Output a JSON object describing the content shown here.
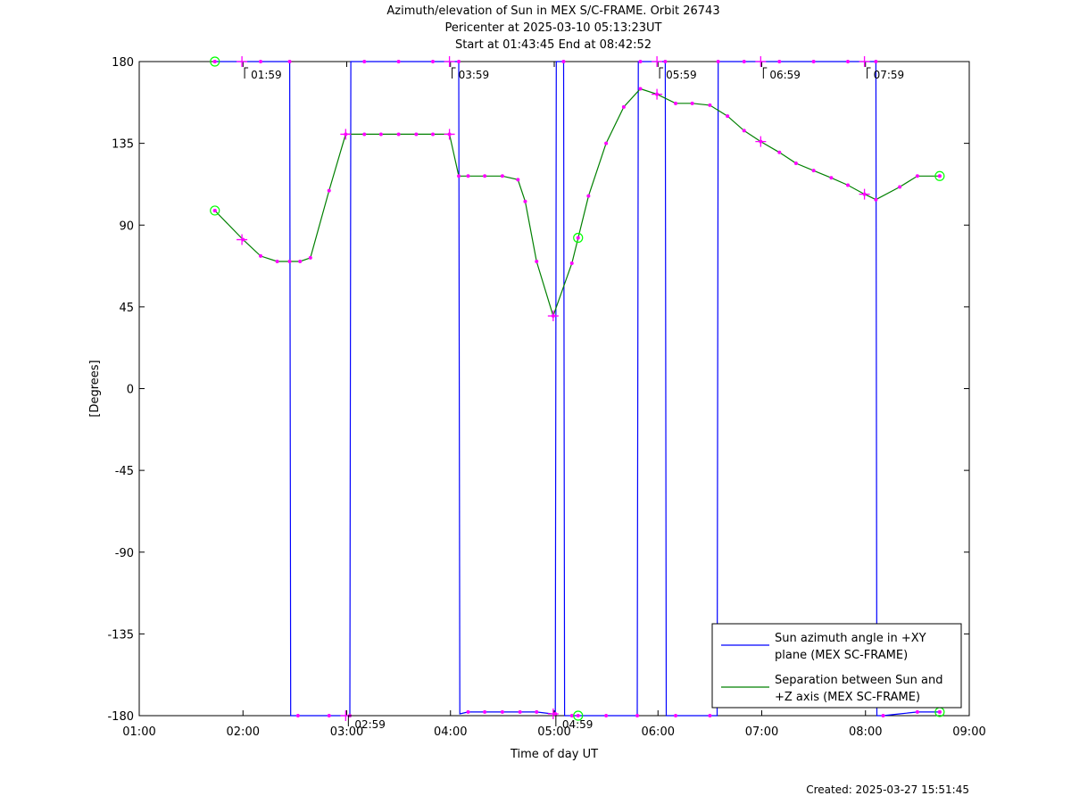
{
  "title_lines": [
    "Azimuth/elevation of Sun in MEX S/C-FRAME.  Orbit 26743",
    "Pericenter at 2025-03-10 05:13:23UT",
    "Start at 01:43:45 End at 08:42:52"
  ],
  "created": "Created: 2025-03-27 15:51:45",
  "colors": {
    "azimuth": "#0000ff",
    "separation": "#008000",
    "marker": "#ff00ff",
    "circle": "#00ff00"
  },
  "chart_data": {
    "type": "line",
    "xlabel": "Time of day UT",
    "ylabel": "[Degrees]",
    "xlim": [
      1.0,
      9.0
    ],
    "ylim": [
      -180,
      180
    ],
    "x_ticks": [
      {
        "value": 1,
        "label": "01:00"
      },
      {
        "value": 2,
        "label": "02:00"
      },
      {
        "value": 3,
        "label": "03:00"
      },
      {
        "value": 4,
        "label": "04:00"
      },
      {
        "value": 5,
        "label": "05:00"
      },
      {
        "value": 6,
        "label": "06:00"
      },
      {
        "value": 7,
        "label": "07:00"
      },
      {
        "value": 8,
        "label": "08:00"
      },
      {
        "value": 9,
        "label": "09:00"
      }
    ],
    "y_ticks": [
      {
        "value": 180,
        "label": "180"
      },
      {
        "value": 135,
        "label": "135"
      },
      {
        "value": 90,
        "label": "90"
      },
      {
        "value": 45,
        "label": "45"
      },
      {
        "value": 0,
        "label": "0"
      },
      {
        "value": -45,
        "label": "-45"
      },
      {
        "value": -90,
        "label": "-90"
      },
      {
        "value": -135,
        "label": "-135"
      },
      {
        "value": -180,
        "label": "-180"
      }
    ],
    "series": [
      {
        "name": "Sun azimuth angle in +XY plane (MEX SC-FRAME)",
        "color": "#0000ff",
        "x": [
          1.729,
          2.0,
          2.17,
          2.33,
          2.45,
          2.46,
          2.53,
          2.67,
          2.83,
          2.98,
          3.03,
          3.04,
          3.17,
          3.33,
          3.5,
          3.67,
          3.83,
          3.99,
          4.08,
          4.09,
          4.17,
          4.33,
          4.5,
          4.67,
          4.83,
          4.98,
          5.01,
          5.02,
          5.09,
          5.1,
          5.17,
          5.33,
          5.5,
          5.67,
          5.8,
          5.81,
          5.83,
          5.99,
          6.07,
          6.08,
          6.17,
          6.33,
          6.5,
          6.57,
          6.58,
          6.67,
          6.83,
          6.99,
          7.17,
          7.33,
          7.5,
          7.67,
          7.83,
          7.98,
          8.1,
          8.11,
          8.17,
          8.33,
          8.5,
          8.715
        ],
        "y": [
          180,
          180,
          180,
          180,
          180,
          -180,
          -180,
          -180,
          -180,
          -180,
          -180,
          180,
          180,
          180,
          180,
          180,
          180,
          180,
          180,
          -179,
          -178,
          -178,
          -178,
          -178,
          -178,
          -179,
          -179,
          180,
          180,
          -180,
          -180,
          -180,
          -180,
          -180,
          -180,
          180,
          180,
          180,
          180,
          -180,
          -180,
          -180,
          -180,
          -180,
          180,
          180,
          180,
          180,
          180,
          180,
          180,
          180,
          180,
          180,
          180,
          -180,
          -180,
          -179,
          -178,
          -178
        ]
      },
      {
        "name": "Separation between Sun and +Z axis (MEX SC-FRAME)",
        "color": "#008000",
        "x": [
          1.729,
          2.0,
          2.17,
          2.33,
          2.45,
          2.55,
          2.65,
          2.83,
          2.99,
          3.17,
          3.33,
          3.5,
          3.67,
          3.83,
          3.99,
          4.08,
          4.17,
          4.33,
          4.5,
          4.65,
          4.72,
          4.83,
          4.99,
          5.17,
          5.33,
          5.5,
          5.67,
          5.83,
          5.99,
          6.17,
          6.33,
          6.5,
          6.67,
          6.83,
          6.99,
          7.17,
          7.33,
          7.5,
          7.67,
          7.83,
          7.99,
          8.1,
          8.33,
          8.5,
          8.715
        ],
        "y": [
          98,
          82,
          73,
          70,
          70,
          70,
          72,
          109,
          140,
          140,
          140,
          140,
          140,
          140,
          140,
          117,
          117,
          117,
          117,
          115,
          103,
          70,
          40,
          69,
          106,
          135,
          155,
          165,
          162,
          157,
          157,
          156,
          150,
          142,
          136,
          130,
          124,
          120,
          116,
          112,
          107,
          104,
          111,
          117,
          117
        ]
      }
    ],
    "markers": [
      {
        "x": 1.729,
        "y": 180,
        "shape": "circle"
      },
      {
        "x": 1.729,
        "y": 98,
        "shape": "circle"
      },
      {
        "x": 8.715,
        "y": 117,
        "shape": "circle"
      },
      {
        "x": 8.715,
        "y": -178,
        "shape": "circle"
      },
      {
        "x": 5.23,
        "y": 83,
        "shape": "circle"
      },
      {
        "x": 5.23,
        "y": -180,
        "shape": "circle"
      },
      {
        "x": 1.99,
        "y": 180,
        "shape": "plus"
      },
      {
        "x": 1.99,
        "y": 82,
        "shape": "plus"
      },
      {
        "x": 2.99,
        "y": 140,
        "shape": "plus"
      },
      {
        "x": 2.99,
        "y": -180,
        "shape": "plus"
      },
      {
        "x": 3.99,
        "y": 180,
        "shape": "plus"
      },
      {
        "x": 3.99,
        "y": 140,
        "shape": "plus"
      },
      {
        "x": 4.99,
        "y": 40,
        "shape": "plus"
      },
      {
        "x": 4.99,
        "y": -179,
        "shape": "plus"
      },
      {
        "x": 5.99,
        "y": 180,
        "shape": "plus"
      },
      {
        "x": 5.99,
        "y": 162,
        "shape": "plus"
      },
      {
        "x": 6.99,
        "y": 180,
        "shape": "plus"
      },
      {
        "x": 6.99,
        "y": 136,
        "shape": "plus"
      },
      {
        "x": 7.99,
        "y": 180,
        "shape": "plus"
      },
      {
        "x": 7.99,
        "y": 107,
        "shape": "plus"
      }
    ],
    "time_labels": [
      {
        "x": 1.99,
        "y": 180,
        "label": "01:59"
      },
      {
        "x": 2.99,
        "y": -180,
        "label": "02:59"
      },
      {
        "x": 3.99,
        "y": 180,
        "label": "03:59"
      },
      {
        "x": 4.99,
        "y": -180,
        "label": "04:59"
      },
      {
        "x": 5.99,
        "y": 180,
        "label": "05:59"
      },
      {
        "x": 6.99,
        "y": 180,
        "label": "06:59"
      },
      {
        "x": 7.99,
        "y": 180,
        "label": "07:59"
      }
    ],
    "legend": {
      "placement": "bottom-right",
      "entries": [
        {
          "lines": [
            "Sun azimuth angle in +XY",
            "plane (MEX SC-FRAME)"
          ],
          "color": "#0000ff"
        },
        {
          "lines": [
            "Separation between Sun and",
            "+Z axis (MEX SC-FRAME)"
          ],
          "color": "#008000"
        }
      ]
    }
  }
}
